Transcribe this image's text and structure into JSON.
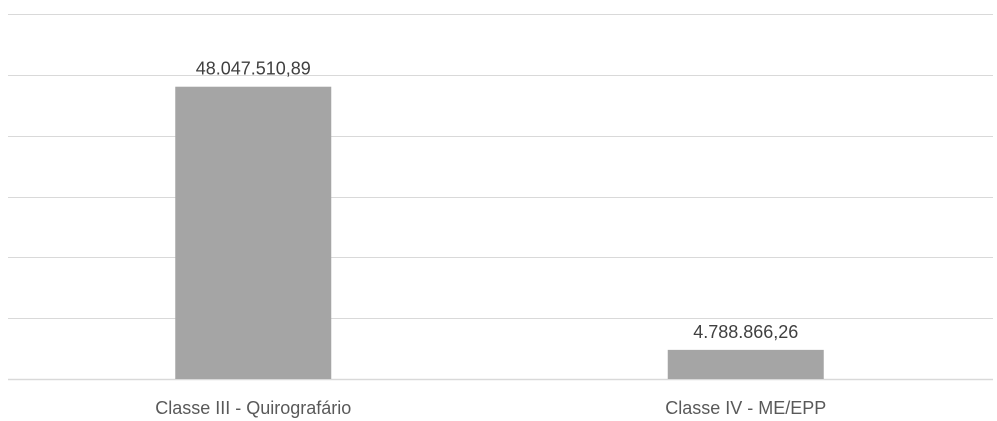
{
  "chart_data": {
    "type": "bar",
    "categories": [
      "Classe III - Quirografário",
      "Classe IV - ME/EPP"
    ],
    "values": [
      48047510.89,
      4788866.26
    ],
    "data_labels": [
      "48.047.510,89",
      "4.788.866,26"
    ],
    "ylim": [
      0,
      60000000
    ],
    "y_grid_step": 10000000,
    "grid": true,
    "legend": "none",
    "bar_color": "#a5a5a5",
    "grid_color": "#d9d9d9"
  }
}
